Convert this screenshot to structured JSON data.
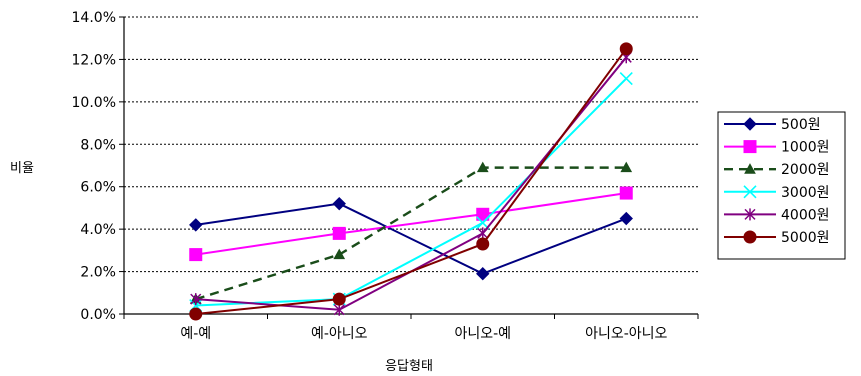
{
  "chart_data": {
    "type": "line",
    "title": "",
    "xlabel": "응답형태",
    "ylabel": "비율",
    "categories": [
      "예-예",
      "예-아니오",
      "아니오-예",
      "아니오-아니오"
    ],
    "ylim": [
      0,
      14
    ],
    "yticks": [
      "0.0%",
      "2.0%",
      "4.0%",
      "6.0%",
      "8.0%",
      "10.0%",
      "12.0%",
      "14.0%"
    ],
    "grid": true,
    "legend_position": "right",
    "series": [
      {
        "name": "500원",
        "values": [
          4.2,
          5.2,
          1.9,
          4.5
        ],
        "color": "#000080",
        "marker": "diamond",
        "dash": false
      },
      {
        "name": "1000원",
        "values": [
          2.8,
          3.8,
          4.7,
          5.7
        ],
        "color": "#ff00ff",
        "marker": "square",
        "dash": false
      },
      {
        "name": "2000원",
        "values": [
          0.7,
          2.8,
          6.9,
          6.9
        ],
        "color": "#1a4d1a",
        "marker": "triangle",
        "dash": true
      },
      {
        "name": "3000원",
        "values": [
          0.4,
          0.7,
          4.3,
          11.1
        ],
        "color": "#00ffff",
        "marker": "x",
        "dash": false
      },
      {
        "name": "4000원",
        "values": [
          0.7,
          0.2,
          3.8,
          12.1
        ],
        "color": "#800080",
        "marker": "star",
        "dash": false
      },
      {
        "name": "5000원",
        "values": [
          0.0,
          0.7,
          3.3,
          12.5
        ],
        "color": "#800000",
        "marker": "circle",
        "dash": false
      }
    ]
  }
}
